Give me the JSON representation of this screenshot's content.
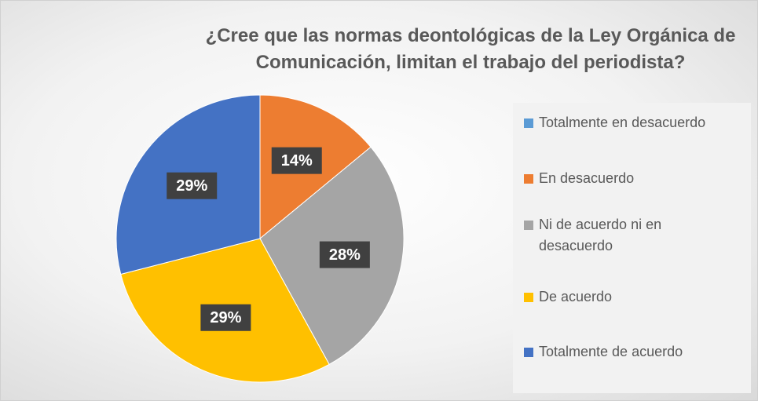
{
  "chart_data": {
    "type": "pie",
    "title": "¿Cree que las normas deontológicas de la Ley Orgánica de Comunicación, limitan el trabajo del periodista?",
    "categories": [
      "Totalmente en desacuerdo",
      "En desacuerdo",
      "Ni de acuerdo ni en desacuerdo",
      "De acuerdo",
      "Totalmente de acuerdo"
    ],
    "values": [
      0,
      14,
      28,
      29,
      29
    ],
    "value_labels": [
      null,
      "14%",
      "28%",
      "29%",
      "29%"
    ],
    "colors": [
      "#5b9bd5",
      "#ed7d31",
      "#a5a5a5",
      "#ffc000",
      "#4472c4"
    ],
    "legend": "right"
  }
}
